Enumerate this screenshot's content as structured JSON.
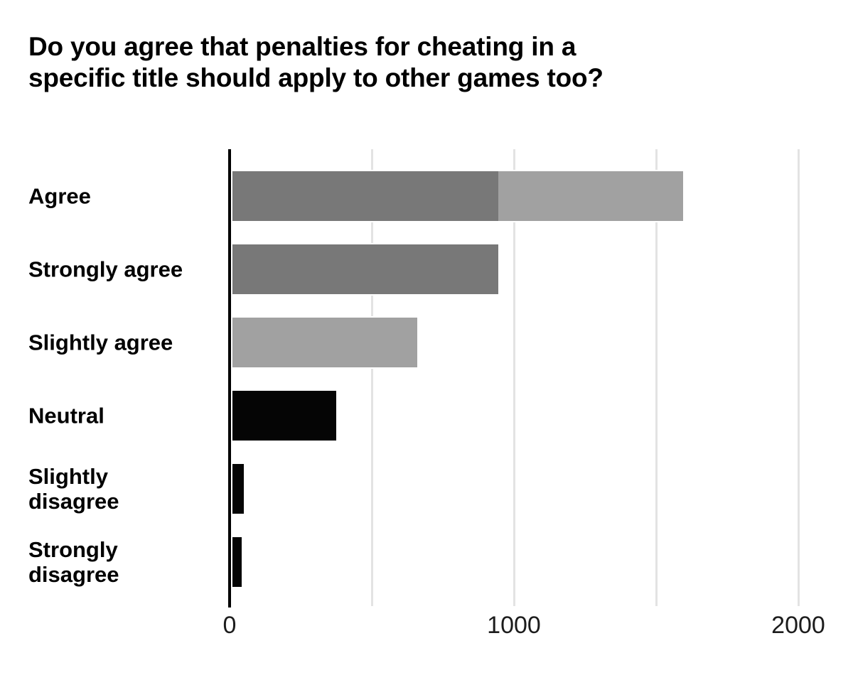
{
  "title": "Do you agree that penalties for cheating in a specific title should apply to other games too?",
  "title_lines": [
    "Do you agree that penalties for cheating in a",
    "specific title should apply to other games too?"
  ],
  "colors": {
    "dark_gray": "#787878",
    "light_gray": "#a1a1a1",
    "black": "#050505",
    "gridline": "#e3e3e3",
    "axis": "#000000",
    "title_text": "#000000",
    "label_text": "#000000",
    "tick_text": "#1c1c1c",
    "background": "#ffffff"
  },
  "chart_data": {
    "type": "bar",
    "orientation": "horizontal",
    "title": "Do you agree that penalties for cheating in a specific title should apply to other games too?",
    "xlabel": "",
    "ylabel": "",
    "xlim": [
      0,
      2170
    ],
    "grid": "vertical-only",
    "legend": "none",
    "value_labels": "none",
    "categories": [
      "Agree",
      "Strongly agree",
      "Slightly agree",
      "Neutral",
      "Slightly disagree",
      "Strongly disagree"
    ],
    "totals": [
      1585,
      935,
      650,
      365,
      40,
      32
    ],
    "rows": [
      {
        "label": "Agree",
        "label_lines": [
          "Agree"
        ],
        "stacked": true,
        "total": 1585,
        "segments": [
          {
            "name": "Strongly agree portion",
            "value": 935,
            "color_key": "dark_gray"
          },
          {
            "name": "Slightly agree portion",
            "value": 650,
            "color_key": "light_gray"
          }
        ]
      },
      {
        "label": "Strongly agree",
        "label_lines": [
          "Strongly agree"
        ],
        "stacked": false,
        "total": 935,
        "segments": [
          {
            "name": "Strongly agree",
            "value": 935,
            "color_key": "dark_gray"
          }
        ]
      },
      {
        "label": "Slightly agree",
        "label_lines": [
          "Slightly agree"
        ],
        "stacked": false,
        "total": 650,
        "segments": [
          {
            "name": "Slightly agree",
            "value": 650,
            "color_key": "light_gray"
          }
        ]
      },
      {
        "label": "Neutral",
        "label_lines": [
          "Neutral"
        ],
        "stacked": false,
        "total": 365,
        "segments": [
          {
            "name": "Neutral",
            "value": 365,
            "color_key": "black"
          }
        ]
      },
      {
        "label": "Slightly disagree",
        "label_lines": [
          "Slightly",
          "disagree"
        ],
        "stacked": false,
        "total": 40,
        "segments": [
          {
            "name": "Slightly disagree",
            "value": 40,
            "color_key": "black"
          }
        ]
      },
      {
        "label": "Strongly disagree",
        "label_lines": [
          "Strongly",
          "disagree"
        ],
        "stacked": false,
        "total": 32,
        "segments": [
          {
            "name": "Strongly disagree",
            "value": 32,
            "color_key": "black"
          }
        ]
      }
    ],
    "x_axis": {
      "ticks": [
        {
          "value": 0,
          "label": "0"
        },
        {
          "value": 1000,
          "label": "1000"
        },
        {
          "value": 2000,
          "label": "2000"
        }
      ],
      "gridline_values": [
        500,
        1000,
        1500,
        2000
      ]
    }
  }
}
